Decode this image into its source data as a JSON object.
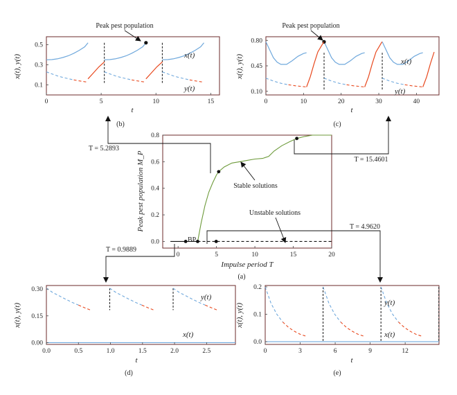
{
  "chart_data": [
    {
      "id": "a",
      "type": "line",
      "caption": "(a)",
      "xlabel": "Impulse period T",
      "ylabel": "Peak pest population M_P",
      "xlim": [
        -2,
        20
      ],
      "ylim": [
        -0.05,
        0.8
      ],
      "xticks": [
        0,
        5,
        10,
        15,
        20
      ],
      "yticks": [
        0.0,
        0.2,
        0.4,
        0.6,
        0.8
      ],
      "series": [
        {
          "style": "solid-green",
          "x": [
            2.55,
            3.0,
            3.5,
            4.0,
            4.5,
            5.0,
            5.2893,
            6.0,
            7.0,
            8.0,
            9.0,
            10.0,
            11.0,
            11.8,
            12.5,
            13.5,
            14.5,
            15.4601,
            16.5,
            17.5,
            18.5,
            20.0
          ],
          "y": [
            0.0,
            0.14,
            0.27,
            0.37,
            0.44,
            0.5,
            0.525,
            0.56,
            0.59,
            0.6,
            0.61,
            0.62,
            0.625,
            0.64,
            0.68,
            0.72,
            0.75,
            0.775,
            0.79,
            0.8,
            0.8,
            0.8
          ]
        },
        {
          "style": "solid-black",
          "x": [
            -1,
            2.55
          ],
          "y": [
            0,
            0
          ]
        },
        {
          "style": "dashed-black",
          "x": [
            2.55,
            20
          ],
          "y": [
            0,
            0
          ]
        }
      ],
      "points": [
        {
          "x": 0.9889,
          "y": 0
        },
        {
          "x": 2.55,
          "y": 0
        },
        {
          "x": 4.962,
          "y": 0
        },
        {
          "x": 5.2893,
          "y": 0.525
        },
        {
          "x": 15.4601,
          "y": 0.775
        }
      ],
      "annotations": {
        "stable": "Stable solutions",
        "unstable": "Unstable solutions",
        "bp": "BP",
        "t1": "T = 5.2893",
        "t2": "T = 15.4601",
        "t3": "T = 0.9889",
        "t4": "T = 4.9620"
      }
    },
    {
      "id": "b",
      "type": "line",
      "caption": "(b)",
      "xlabel": "t",
      "ylabel": "x(t), y(t)",
      "xlim": [
        0,
        15.8
      ],
      "ylim": [
        0,
        0.58
      ],
      "xticks": [
        0,
        5,
        10,
        15
      ],
      "yticks": [
        0.1,
        0.3,
        0.5
      ],
      "period": 5.2893,
      "x_curve": [
        [
          0,
          0.35
        ],
        [
          0.5,
          0.352
        ],
        [
          1.0,
          0.36
        ],
        [
          1.5,
          0.373
        ],
        [
          2.0,
          0.39
        ],
        [
          2.5,
          0.415
        ],
        [
          3.0,
          0.445
        ],
        [
          3.5,
          0.48
        ],
        [
          3.8,
          0.52
        ]
      ],
      "y_curve": [
        [
          0,
          0.23
        ],
        [
          0.5,
          0.21
        ],
        [
          1.0,
          0.19
        ],
        [
          1.5,
          0.175
        ],
        [
          2.0,
          0.162
        ],
        [
          2.5,
          0.15
        ],
        [
          3.0,
          0.14
        ],
        [
          3.5,
          0.132
        ],
        [
          3.8,
          0.128
        ]
      ],
      "x_label": "x(t)",
      "y_label": "y(t)",
      "peak_label": "Peak pest population"
    },
    {
      "id": "c",
      "type": "line",
      "caption": "(c)",
      "xlabel": "t",
      "ylabel": "x(t), y(t)",
      "xlim": [
        0,
        46
      ],
      "ylim": [
        0.05,
        0.85
      ],
      "xticks": [
        0,
        10,
        20,
        30,
        40
      ],
      "yticks": [
        0.1,
        0.45,
        0.8
      ],
      "period": 15.4601,
      "x_curve": [
        [
          0,
          0.78
        ],
        [
          1.0,
          0.67
        ],
        [
          2.0,
          0.56
        ],
        [
          3.0,
          0.5
        ],
        [
          4.0,
          0.47
        ],
        [
          5.5,
          0.47
        ],
        [
          7.0,
          0.52
        ],
        [
          8.5,
          0.58
        ],
        [
          10.0,
          0.62
        ],
        [
          10.8,
          0.63
        ]
      ],
      "y_curve": [
        [
          0,
          0.28
        ],
        [
          2.0,
          0.24
        ],
        [
          4.0,
          0.21
        ],
        [
          6.0,
          0.19
        ],
        [
          8.0,
          0.175
        ],
        [
          10.8,
          0.16
        ]
      ],
      "x_label": "x(t)",
      "y_label": "y(t)",
      "peak_label": "Peak pest population"
    },
    {
      "id": "d",
      "type": "line",
      "caption": "(d)",
      "xlabel": "t",
      "ylabel": "x(t), y(t)",
      "xlim": [
        0,
        2.95
      ],
      "ylim": [
        -0.01,
        0.32
      ],
      "xticks": [
        0.0,
        0.5,
        1.0,
        1.5,
        2.0,
        2.5
      ],
      "yticks": [
        0.0,
        0.15,
        0.3
      ],
      "period": 0.9889,
      "y_curve": [
        [
          0,
          0.305
        ],
        [
          0.1,
          0.28
        ],
        [
          0.2,
          0.262
        ],
        [
          0.3,
          0.243
        ],
        [
          0.4,
          0.226
        ],
        [
          0.5,
          0.21
        ],
        [
          0.6,
          0.195
        ],
        [
          0.69,
          0.182
        ]
      ],
      "x_label": "x(t)",
      "y_label": "y(t)"
    },
    {
      "id": "e",
      "type": "line",
      "caption": "(e)",
      "xlabel": "t",
      "ylabel": "x(t), y(t)",
      "xlim": [
        0,
        14.9
      ],
      "ylim": [
        -0.01,
        0.205
      ],
      "xticks": [
        0,
        3,
        6,
        9,
        12
      ],
      "yticks": [
        0.0,
        0.1,
        0.2
      ],
      "period": 4.962,
      "y_curve": [
        [
          0,
          0.2
        ],
        [
          0.5,
          0.14
        ],
        [
          1.0,
          0.1
        ],
        [
          1.5,
          0.072
        ],
        [
          2.0,
          0.052
        ],
        [
          2.5,
          0.038
        ],
        [
          3.0,
          0.027
        ],
        [
          3.5,
          0.02
        ]
      ],
      "x_label": "x(t)",
      "y_label": "y(t)"
    }
  ],
  "colors": {
    "blue": "#6fa8dc",
    "red": "#e8471c",
    "green": "#6d9a3a",
    "frame": "#6b2a2a",
    "black": "#111111"
  }
}
